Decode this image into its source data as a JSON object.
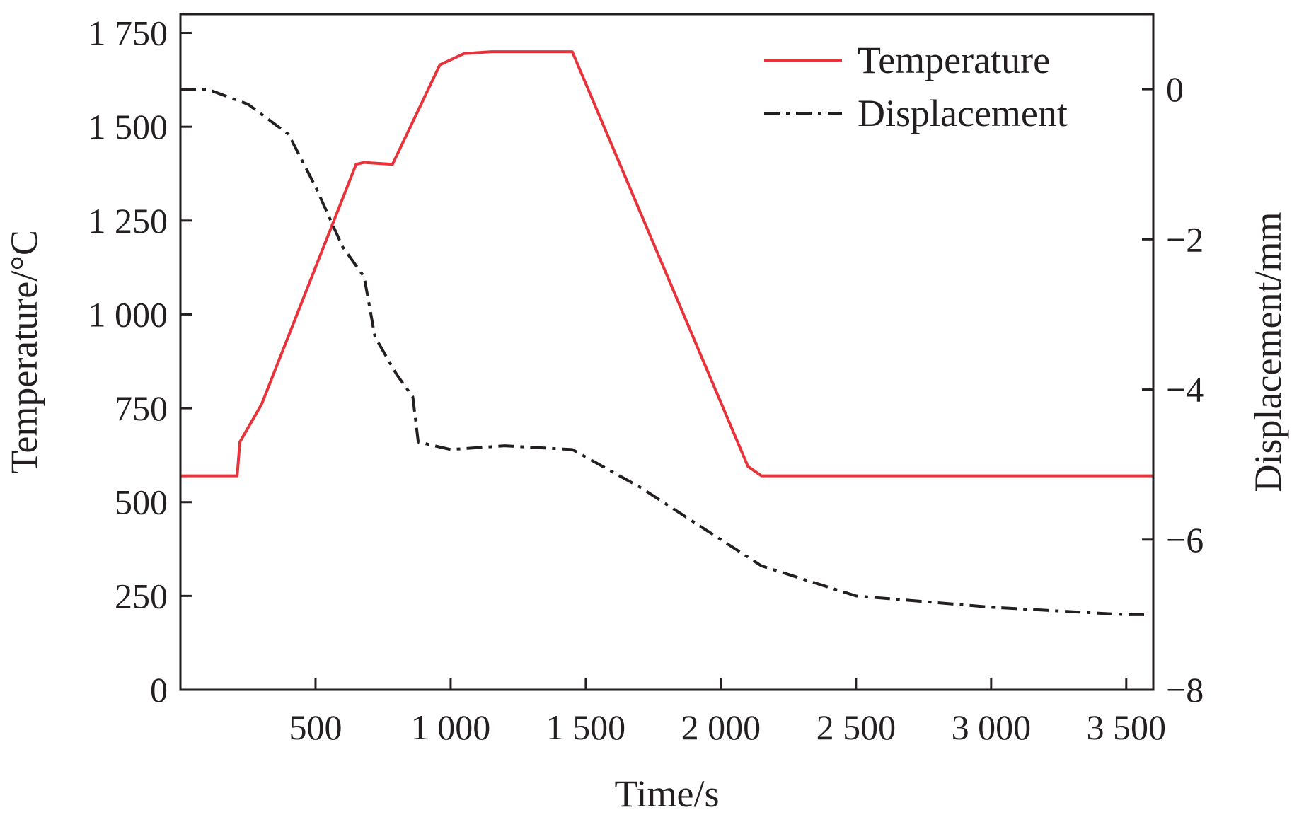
{
  "chart_data": {
    "type": "line",
    "title": "",
    "xlabel": "Time/s",
    "ylabel_left": "Temperature/°C",
    "ylabel_right": "Displacement/mm",
    "xlim": [
      0,
      3600
    ],
    "ylim_left": [
      0,
      1800
    ],
    "ylim_right": [
      -8,
      1
    ],
    "x_ticks": [
      500,
      1000,
      1500,
      2000,
      2500,
      3000,
      3500
    ],
    "x_tick_labels": [
      "500",
      "1 000",
      "1 500",
      "2 000",
      "2 500",
      "3 000",
      "3 500"
    ],
    "y_left_ticks": [
      0,
      250,
      500,
      750,
      1000,
      1250,
      1500,
      1750
    ],
    "y_left_tick_labels": [
      "0",
      "250",
      "500",
      "750",
      "1 000",
      "1 250",
      "1 500",
      "1 750"
    ],
    "y_right_ticks": [
      -8,
      -6,
      -4,
      -2,
      0
    ],
    "y_right_tick_labels": [
      "−8",
      "−6",
      "−4",
      "−2",
      "0"
    ],
    "legend_position": "top-right",
    "series": [
      {
        "name": "Temperature",
        "axis": "left",
        "color": "#e8333a",
        "style": "solid",
        "points": [
          [
            0,
            570
          ],
          [
            210,
            570
          ],
          [
            220,
            660
          ],
          [
            300,
            760
          ],
          [
            650,
            1400
          ],
          [
            680,
            1405
          ],
          [
            785,
            1400
          ],
          [
            960,
            1665
          ],
          [
            1050,
            1695
          ],
          [
            1150,
            1700
          ],
          [
            1450,
            1700
          ],
          [
            2100,
            595
          ],
          [
            2150,
            570
          ],
          [
            3600,
            570
          ]
        ]
      },
      {
        "name": "Displacement",
        "axis": "right",
        "color": "#231f20",
        "style": "dash-dot",
        "points": [
          [
            0,
            0
          ],
          [
            100,
            0
          ],
          [
            250,
            -0.2
          ],
          [
            400,
            -0.6
          ],
          [
            500,
            -1.3
          ],
          [
            600,
            -2.1
          ],
          [
            680,
            -2.5
          ],
          [
            720,
            -3.3
          ],
          [
            800,
            -3.8
          ],
          [
            860,
            -4.1
          ],
          [
            880,
            -4.7
          ],
          [
            1000,
            -4.8
          ],
          [
            1200,
            -4.75
          ],
          [
            1450,
            -4.8
          ],
          [
            1700,
            -5.3
          ],
          [
            2000,
            -6.0
          ],
          [
            2150,
            -6.35
          ],
          [
            2500,
            -6.75
          ],
          [
            3000,
            -6.9
          ],
          [
            3500,
            -7.0
          ],
          [
            3570,
            -7.0
          ]
        ]
      }
    ]
  }
}
